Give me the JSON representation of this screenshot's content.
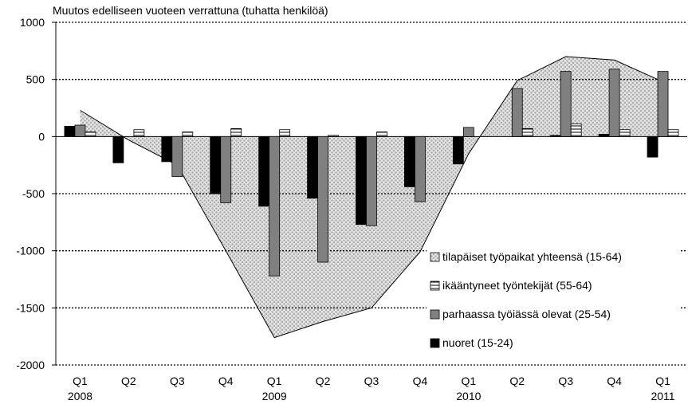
{
  "chart_data": {
    "type": "bar",
    "title": "Muutos edelliseen vuoteen verrattuna (tuhatta henkilöä)",
    "categories": [
      "Q1",
      "Q2",
      "Q3",
      "Q4",
      "Q1",
      "Q2",
      "Q3",
      "Q4",
      "Q1",
      "Q2",
      "Q3",
      "Q4",
      "Q1"
    ],
    "years": [
      "2008",
      null,
      null,
      null,
      "2009",
      null,
      null,
      null,
      "2010",
      null,
      null,
      null,
      "2011"
    ],
    "series": [
      {
        "name": "nuoret (15-24)",
        "type": "bar",
        "color": "#000000",
        "values": [
          90,
          -230,
          -220,
          -500,
          -610,
          -540,
          -770,
          -440,
          -240,
          null,
          10,
          20,
          -180
        ]
      },
      {
        "name": "parhaassa työiässä olevat (25-54)",
        "type": "bar",
        "color": "#808080",
        "values": [
          100,
          null,
          -350,
          -580,
          -1220,
          -1100,
          -780,
          -570,
          80,
          420,
          570,
          590,
          570
        ]
      },
      {
        "name": "ikääntyneet työntekijät (55-64)",
        "type": "bar",
        "color": "#ffffff",
        "values": [
          40,
          60,
          40,
          70,
          60,
          10,
          40,
          null,
          null,
          70,
          110,
          60,
          60
        ]
      },
      {
        "name": "tilapäiset työpaikat yhteensä (15-64)",
        "type": "area",
        "color": "#d0d0d0",
        "values": [
          230,
          -30,
          -250,
          -1000,
          -1760,
          -1620,
          -1500,
          -1010,
          -150,
          490,
          700,
          670,
          480
        ]
      }
    ],
    "ylim": [
      -2000,
      1000
    ],
    "yticks": [
      -2000,
      -1500,
      -1000,
      -500,
      0,
      500,
      1000
    ],
    "grid": true,
    "legend": "lower right"
  }
}
